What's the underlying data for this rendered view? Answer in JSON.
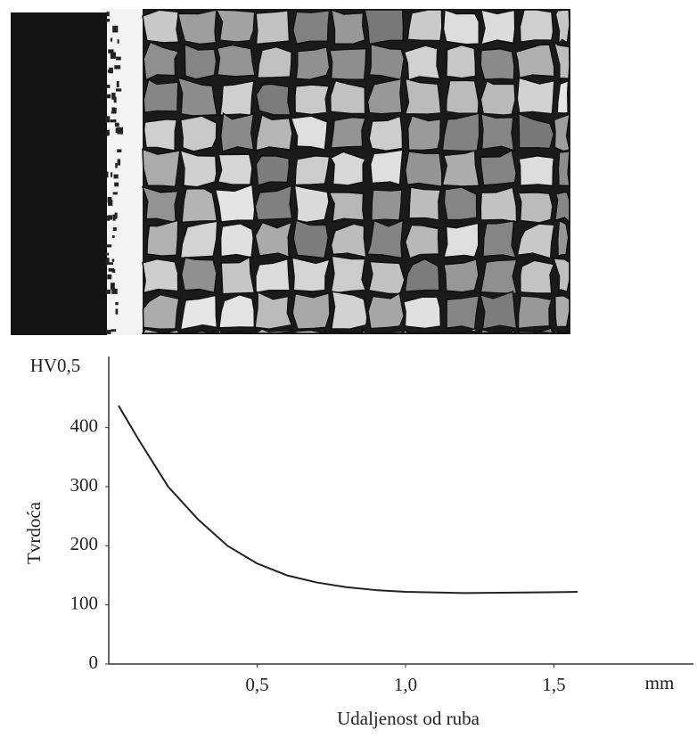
{
  "chart_data": {
    "type": "line",
    "y_unit": "HV0,5",
    "y_label": "Tvrdoća",
    "x_unit": "mm",
    "x_label": "Udaljenost od ruba",
    "x": [
      0.033,
      0.1,
      0.2,
      0.3,
      0.4,
      0.5,
      0.6,
      0.7,
      0.8,
      0.9,
      1.0,
      1.2,
      1.4,
      1.58
    ],
    "series": [
      {
        "color": "#222222",
        "values": [
          437,
          380,
          300,
          245,
          200,
          170,
          150,
          138,
          130,
          125,
          122,
          120,
          121,
          122
        ]
      }
    ],
    "xlim": [
      0,
      1.97
    ],
    "ylim": [
      0,
      520
    ],
    "xticks": [
      {
        "value": 0.5,
        "label": "0,5"
      },
      {
        "value": 1.0,
        "label": "1,0"
      },
      {
        "value": 1.5,
        "label": "1,5"
      }
    ],
    "yticks": [
      0,
      100,
      200,
      300,
      400
    ]
  }
}
